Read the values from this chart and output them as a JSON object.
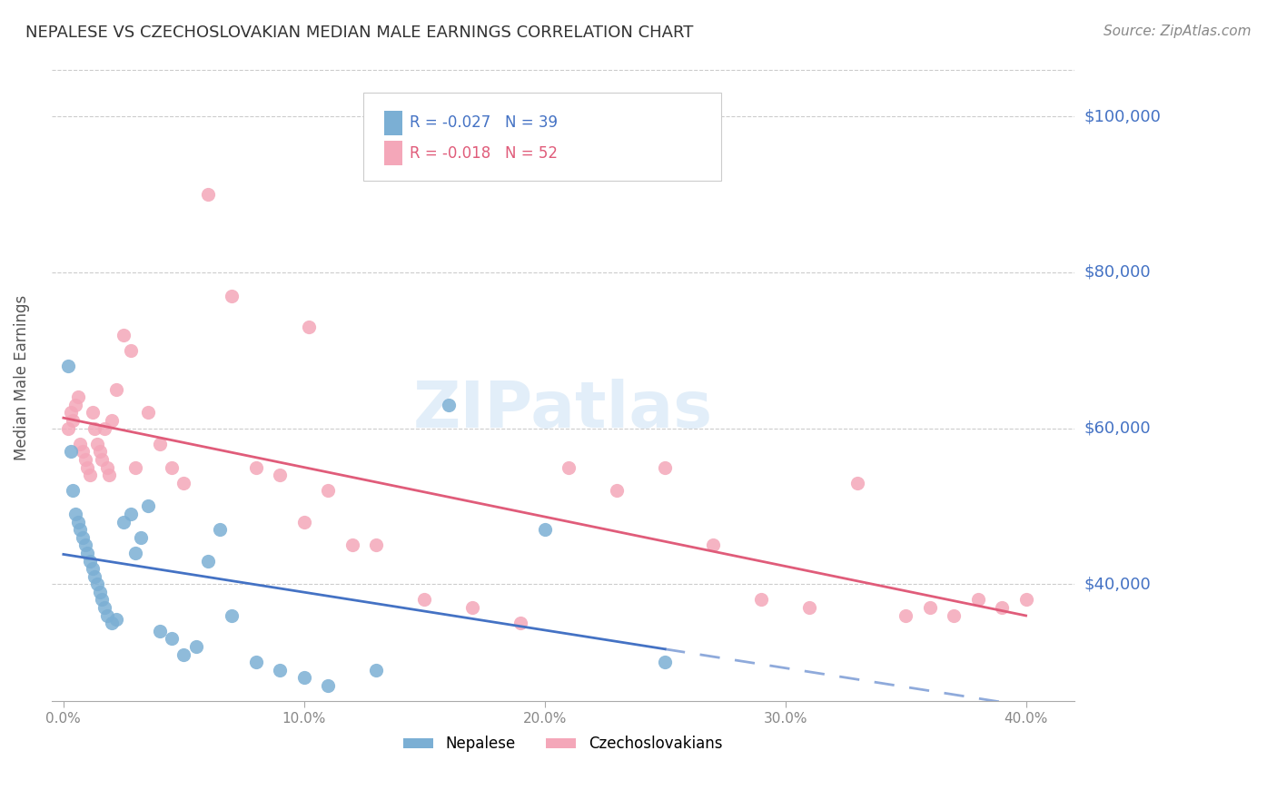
{
  "title": "NEPALESE VS CZECHOSLOVAKIAN MEDIAN MALE EARNINGS CORRELATION CHART",
  "source": "Source: ZipAtlas.com",
  "ylabel": "Median Male Earnings",
  "xlabel_ticks": [
    "0.0%",
    "10.0%",
    "20.0%",
    "30.0%",
    "40.0%"
  ],
  "xlabel_vals": [
    0.0,
    0.1,
    0.2,
    0.3,
    0.4
  ],
  "ytick_labels": [
    "$40,000",
    "$60,000",
    "$80,000",
    "$100,000"
  ],
  "ytick_vals": [
    40000,
    60000,
    80000,
    100000
  ],
  "ylim": [
    25000,
    108000
  ],
  "xlim": [
    -0.005,
    0.42
  ],
  "nepalese_R": -0.027,
  "nepalese_N": 39,
  "czechoslovakian_R": -0.018,
  "czechoslovakian_N": 52,
  "nepalese_color": "#7bafd4",
  "czechoslovakian_color": "#f4a7b9",
  "nepalese_line_color": "#4472c4",
  "czechoslovakian_line_color": "#e05c7a",
  "watermark": "ZIPatlas",
  "background_color": "#ffffff",
  "grid_color": "#cccccc",
  "right_label_color": "#4472c4",
  "nepalese_x": [
    0.002,
    0.003,
    0.004,
    0.005,
    0.006,
    0.007,
    0.008,
    0.009,
    0.01,
    0.011,
    0.012,
    0.013,
    0.014,
    0.015,
    0.016,
    0.017,
    0.018,
    0.02,
    0.022,
    0.025,
    0.028,
    0.03,
    0.032,
    0.035,
    0.04,
    0.045,
    0.05,
    0.055,
    0.06,
    0.065,
    0.07,
    0.08,
    0.09,
    0.1,
    0.11,
    0.13,
    0.16,
    0.2,
    0.25
  ],
  "nepalese_y": [
    68000,
    57000,
    52000,
    49000,
    48000,
    47000,
    46000,
    45000,
    44000,
    43000,
    42000,
    41000,
    40000,
    39000,
    38000,
    37000,
    36000,
    35000,
    35500,
    48000,
    49000,
    44000,
    46000,
    50000,
    34000,
    33000,
    31000,
    32000,
    43000,
    47000,
    36000,
    30000,
    29000,
    28000,
    27000,
    29000,
    63000,
    47000,
    30000
  ],
  "czechoslovakian_x": [
    0.002,
    0.003,
    0.004,
    0.005,
    0.006,
    0.007,
    0.008,
    0.009,
    0.01,
    0.011,
    0.012,
    0.013,
    0.014,
    0.015,
    0.016,
    0.017,
    0.018,
    0.019,
    0.02,
    0.022,
    0.025,
    0.028,
    0.03,
    0.035,
    0.04,
    0.045,
    0.05,
    0.06,
    0.07,
    0.08,
    0.09,
    0.1,
    0.11,
    0.12,
    0.13,
    0.15,
    0.17,
    0.19,
    0.21,
    0.23,
    0.25,
    0.27,
    0.29,
    0.31,
    0.33,
    0.35,
    0.36,
    0.37,
    0.38,
    0.39,
    0.4,
    0.102
  ],
  "czechoslovakian_y": [
    60000,
    62000,
    61000,
    63000,
    64000,
    58000,
    57000,
    56000,
    55000,
    54000,
    62000,
    60000,
    58000,
    57000,
    56000,
    60000,
    55000,
    54000,
    61000,
    65000,
    72000,
    70000,
    55000,
    62000,
    58000,
    55000,
    53000,
    90000,
    77000,
    55000,
    54000,
    48000,
    52000,
    45000,
    45000,
    38000,
    37000,
    35000,
    55000,
    52000,
    55000,
    45000,
    38000,
    37000,
    53000,
    36000,
    37000,
    36000,
    38000,
    37000,
    38000,
    73000
  ]
}
